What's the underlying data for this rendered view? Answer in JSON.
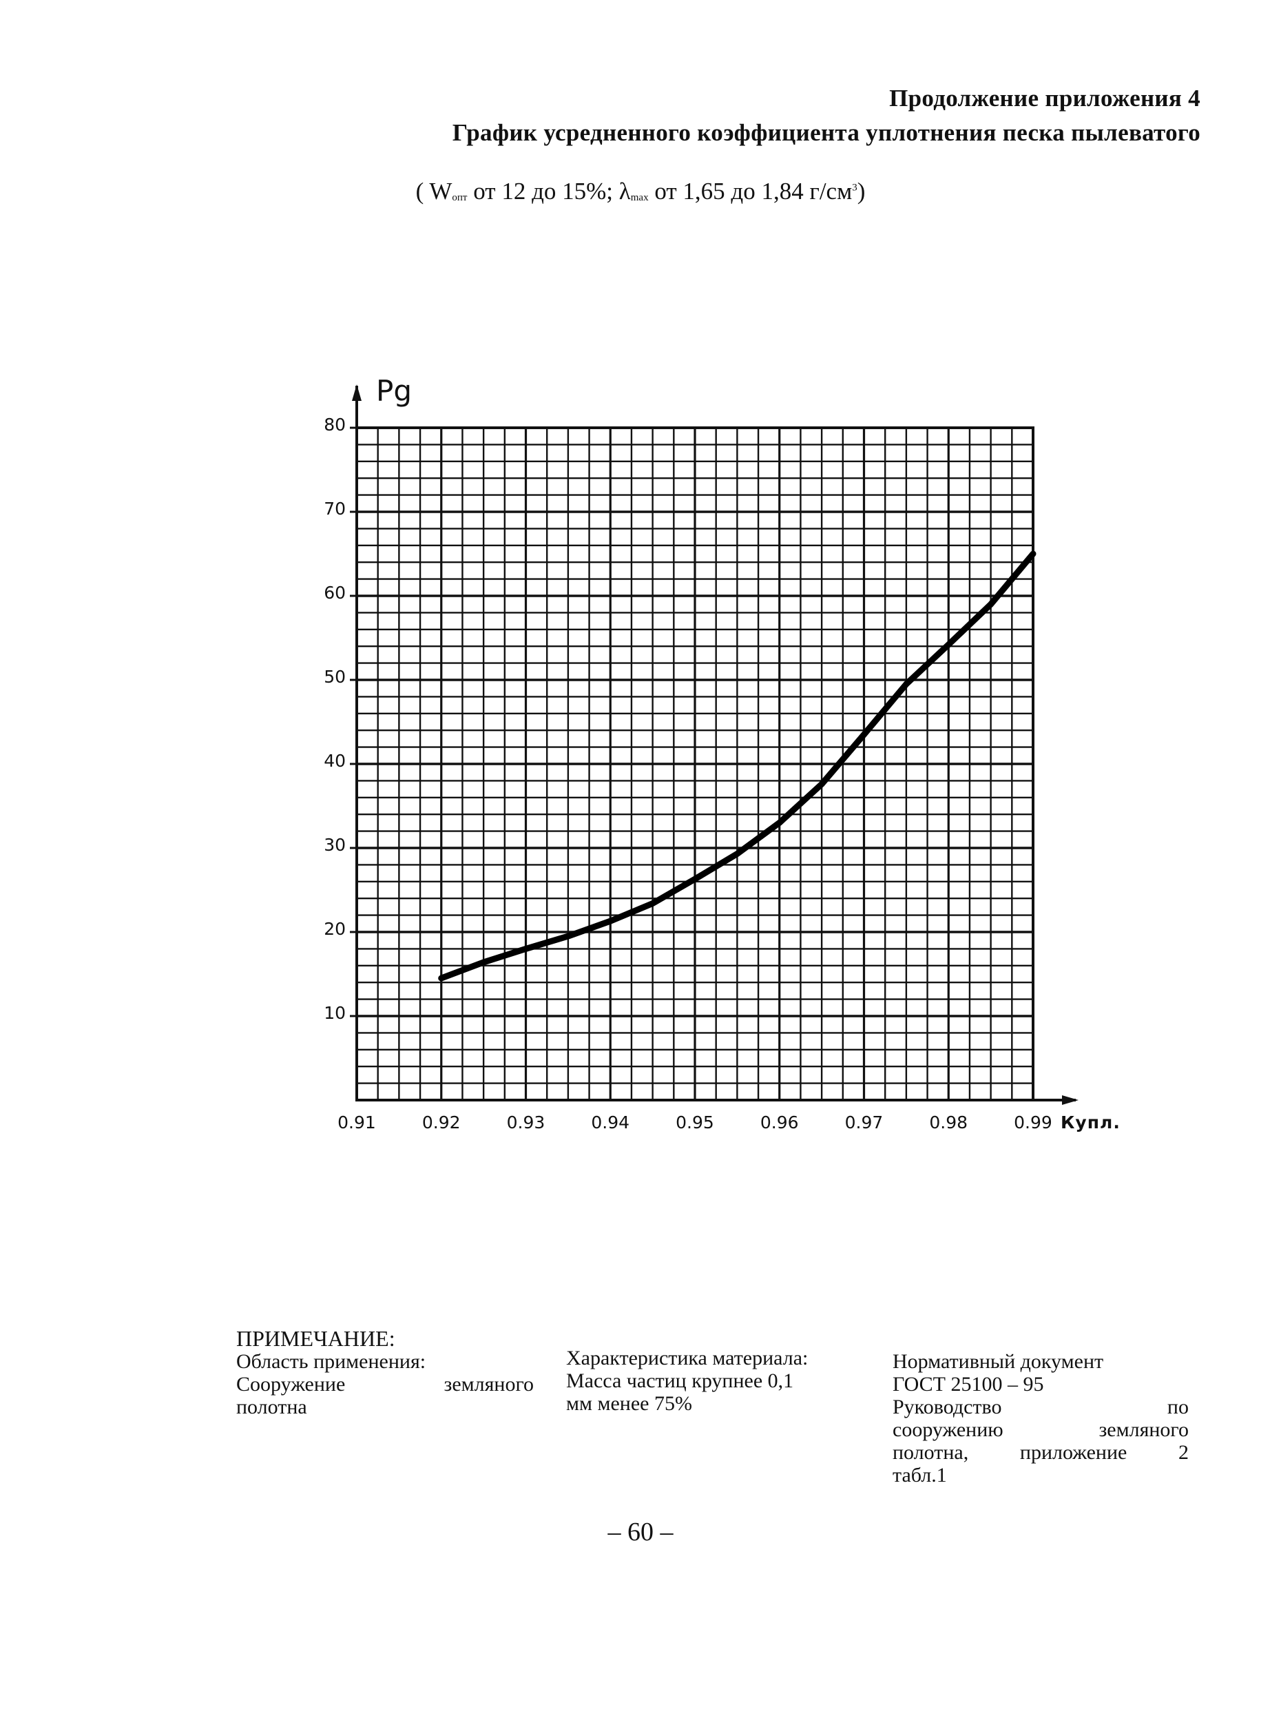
{
  "header": {
    "appendix_label": "Продолжение приложения 4",
    "title": "График усредненного коэффициента уплотнения песка пылеватого"
  },
  "formula": {
    "open": "( W",
    "w_sub": "опт",
    "w_range": " от 12 до 15%; λ",
    "lambda_sub": "max",
    "lambda_range": " от 1,65 до 1,84 г/см",
    "unit_sup": "3",
    "close": ")"
  },
  "chart_data": {
    "type": "line",
    "ylabel": "Pg",
    "xlabel": "Купл.",
    "xlim": [
      0.91,
      0.99
    ],
    "ylim": [
      0,
      80
    ],
    "grid": true,
    "x_tick_labels": [
      "0.91",
      "0.92",
      "0.93",
      "0.94",
      "0.95",
      "0.96",
      "0.97",
      "0.98",
      "0.99"
    ],
    "y_tick_labels": [
      "10",
      "20",
      "30",
      "40",
      "50",
      "60",
      "70",
      "80"
    ],
    "series": [
      {
        "x": [
          0.92,
          0.925,
          0.93,
          0.935,
          0.94,
          0.945,
          0.95,
          0.955,
          0.96,
          0.965,
          0.97,
          0.975,
          0.98,
          0.985,
          0.99
        ],
        "y": [
          14.5,
          16.4,
          18.0,
          19.5,
          21.3,
          23.4,
          26.3,
          29.3,
          33.0,
          37.6,
          43.5,
          49.5,
          54.2,
          59.0,
          65.0
        ]
      }
    ]
  },
  "note": {
    "title": "ПРИМЕЧАНИЕ:",
    "col1": {
      "heading": "Область применения:",
      "line1": "Сооружение земляного",
      "line2": "полотна"
    },
    "col2": {
      "heading": "Характеристика материала:",
      "line1": "Масса частиц крупнее 0,1",
      "line2": "мм менее 75%"
    },
    "col3": {
      "heading": "Нормативный документ",
      "line1": "ГОСТ 25100 – 95",
      "line2": "Руководство по",
      "line3": "сооружению земляного",
      "line4": "полотна, приложение 2",
      "line5": "табл.1"
    }
  },
  "page_number": "– 60 –"
}
